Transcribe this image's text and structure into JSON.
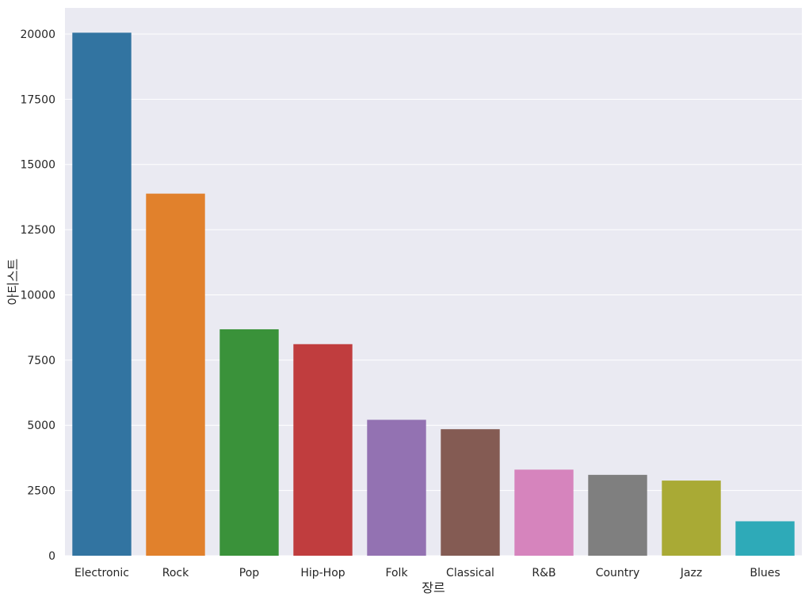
{
  "chart_data": {
    "type": "bar",
    "title": "",
    "xlabel": "장르",
    "ylabel": "아티스트",
    "categories": [
      "Electronic",
      "Rock",
      "Pop",
      "Hip-Hop",
      "Folk",
      "Classical",
      "R&B",
      "Country",
      "Jazz",
      "Blues"
    ],
    "values": [
      20050,
      13880,
      8680,
      8110,
      5210,
      4850,
      3300,
      3100,
      2880,
      1320
    ],
    "ylim": [
      0,
      21000
    ],
    "yticks": [
      0,
      2500,
      5000,
      7500,
      10000,
      12500,
      15000,
      17500,
      20000
    ],
    "grid": true,
    "legend": "none",
    "colors": [
      "#3274a1",
      "#e1812c",
      "#3a923a",
      "#c03d3e",
      "#9372b2",
      "#845b53",
      "#d684bd",
      "#7f7f7f",
      "#a9aa35",
      "#2eaab8"
    ],
    "background": "#eaeaf2",
    "grid_color": "#ffffff"
  }
}
